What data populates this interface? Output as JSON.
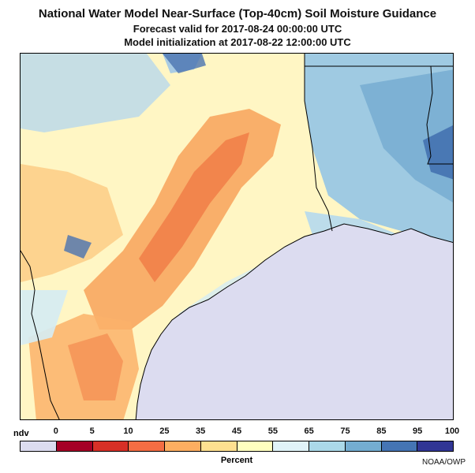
{
  "title": {
    "line1": "National Water Model Near-Surface (Top-40cm) Soil Moisture Guidance",
    "line2": "Forecast valid for 2017-08-24 00:00:00 UTC",
    "line3": "Model initialization at 2017-08-22 12:00:00 UTC"
  },
  "legend": {
    "ndv_label": "ndv",
    "ticks": [
      "0",
      "5",
      "10",
      "25",
      "35",
      "45",
      "55",
      "65",
      "75",
      "85",
      "95",
      "100"
    ],
    "colors": [
      "#dcdcf0",
      "#a50026",
      "#d73027",
      "#f46d43",
      "#fdae61",
      "#fee090",
      "#ffffbf",
      "#e0f3f8",
      "#abd9e9",
      "#74add1",
      "#4575b4",
      "#313695"
    ],
    "title": "Percent"
  },
  "credit": "NOAA/OWP",
  "map": {
    "gulf_color": "#dcdcf0"
  }
}
